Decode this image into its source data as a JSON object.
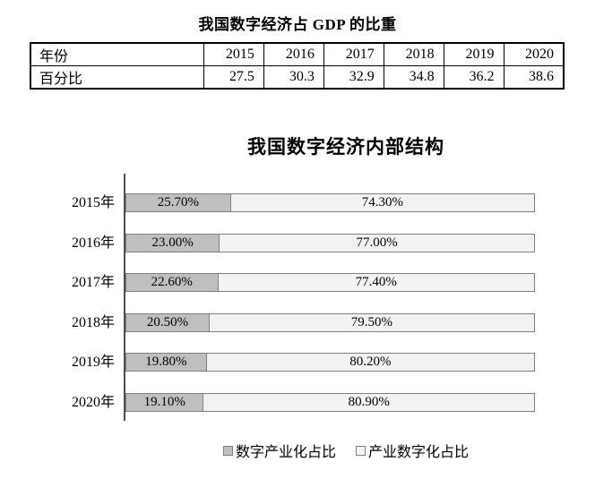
{
  "chart_data": [
    {
      "type": "table",
      "title": "我国数字经济占 GDP 的比重",
      "row_headers": [
        "年份",
        "百分比"
      ],
      "categories": [
        "2015",
        "2016",
        "2017",
        "2018",
        "2019",
        "2020"
      ],
      "values": [
        "27.5",
        "30.3",
        "32.9",
        "34.8",
        "36.2",
        "38.6"
      ]
    },
    {
      "type": "bar",
      "orientation": "horizontal",
      "stacked": true,
      "title": "我国数字经济内部结构",
      "categories": [
        "2015年",
        "2016年",
        "2017年",
        "2018年",
        "2019年",
        "2020年"
      ],
      "series": [
        {
          "name": "数字产业化占比",
          "color": "#bfbfbf",
          "values": [
            25.7,
            23.0,
            22.6,
            20.5,
            19.8,
            19.1
          ],
          "labels": [
            "25.70%",
            "23.00%",
            "22.60%",
            "20.50%",
            "19.80%",
            "19.10%"
          ]
        },
        {
          "name": "产业数字化占比",
          "color": "#f2f2f2",
          "values": [
            74.3,
            77.0,
            77.4,
            79.5,
            80.2,
            80.9
          ],
          "labels": [
            "74.30%",
            "77.00%",
            "77.40%",
            "79.50%",
            "80.20%",
            "80.90%"
          ]
        }
      ],
      "xlim": [
        0,
        100
      ],
      "legend_position": "bottom",
      "data_labels": true,
      "gridlines": false
    }
  ],
  "colors": {
    "series1_fill": "#bfbfbf",
    "series2_fill": "#f2f2f2",
    "bar_border": "#7f7f7f",
    "axis_line": "#4d4d4d",
    "table_border": "#000000",
    "background": "#ffffff"
  }
}
